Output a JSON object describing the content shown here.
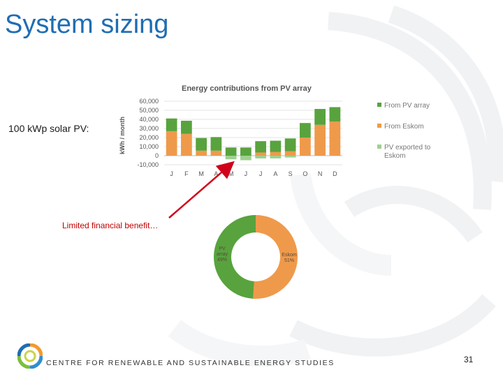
{
  "slide": {
    "title": "System sizing",
    "subtitle": "100 kWp solar PV:",
    "annotation": "Limited financial benefit…",
    "footer": "CENTRE FOR RENEWABLE AND SUSTAINABLE ENERGY STUDIES",
    "page_number": "31"
  },
  "colors": {
    "title": "#1f6db3",
    "pv_array": "#58a33e",
    "from_eskom": "#ef9a4b",
    "exported": "#9fd08f",
    "arrow": "#d0021b"
  },
  "chart_data": [
    {
      "type": "bar",
      "stacked": true,
      "title": "Energy contributions from PV array",
      "ylabel": "kWh / month",
      "xlabel": "",
      "ylim": [
        -10000,
        60000
      ],
      "yticks": [
        "60,000",
        "50,000",
        "40,000",
        "30,000",
        "20,000",
        "10,000",
        "0",
        "-10,000"
      ],
      "categories": [
        "J",
        "F",
        "M",
        "A",
        "M",
        "J",
        "J",
        "A",
        "S",
        "O",
        "N",
        "D"
      ],
      "grid": true,
      "legend_position": "right",
      "series": [
        {
          "name": "From PV array",
          "color": "#58a33e",
          "values": [
            14000,
            14500,
            14000,
            15000,
            9000,
            9000,
            12500,
            12500,
            14000,
            16000,
            17500,
            16000
          ]
        },
        {
          "name": "From Eskom",
          "color": "#ef9a4b",
          "values": [
            27000,
            24000,
            5500,
            5500,
            0,
            0,
            3500,
            4000,
            5000,
            20000,
            34000,
            37500
          ]
        },
        {
          "name": "PV exported to Eskom",
          "color": "#9fd08f",
          "values": [
            0,
            0,
            0,
            0,
            -4000,
            -5000,
            -3000,
            -3000,
            -2000,
            0,
            0,
            0
          ]
        }
      ]
    },
    {
      "type": "pie",
      "donut": true,
      "slices": [
        {
          "label": "PV array",
          "percent_label": "49%",
          "value": 49,
          "color": "#58a33e"
        },
        {
          "label": "Eskom",
          "percent_label": "51%",
          "value": 51,
          "color": "#ef9a4b"
        }
      ]
    }
  ]
}
